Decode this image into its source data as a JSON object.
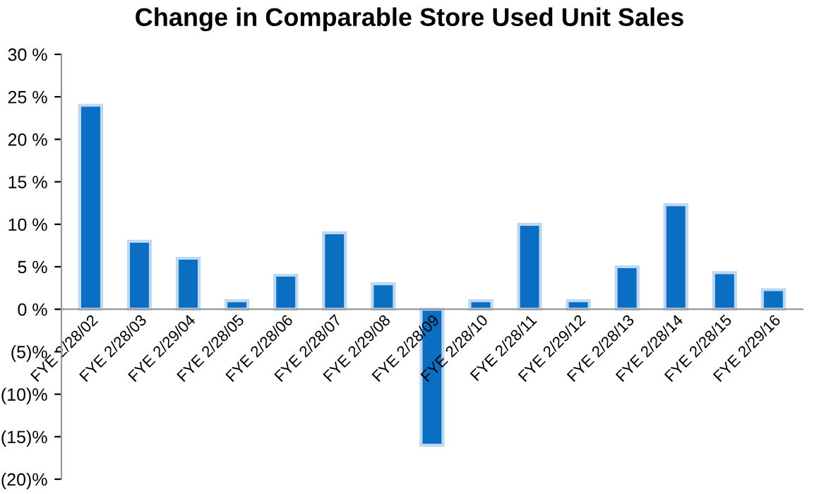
{
  "chart_data": {
    "type": "bar",
    "title": "Change in Comparable Store Used Unit Sales",
    "categories": [
      "FYE 2/28/02",
      "FYE 2/28/03",
      "FYE 2/29/04",
      "FYE 2/28/05",
      "FYE 2/28/06",
      "FYE 2/28/07",
      "FYE 2/29/08",
      "FYE 2/28/09",
      "FYE 2/28/10",
      "FYE 2/28/11",
      "FYE 2/29/12",
      "FYE 2/28/13",
      "FYE 2/28/14",
      "FYE 2/28/15",
      "FYE 2/29/16"
    ],
    "values": [
      24,
      8,
      6,
      1,
      4,
      9,
      3,
      -16,
      1,
      10,
      1,
      5,
      12.3,
      4.3,
      2.3
    ],
    "color": "#0a6fc2",
    "ylim": [
      -20,
      30
    ],
    "yticks": [
      {
        "value": -20,
        "label": "(20)%"
      },
      {
        "value": -15,
        "label": "(15)%"
      },
      {
        "value": -10,
        "label": "(10)%"
      },
      {
        "value": -5,
        "label": "(5)%"
      },
      {
        "value": 0,
        "label": "0 %"
      },
      {
        "value": 5,
        "label": "5 %"
      },
      {
        "value": 10,
        "label": "10 %"
      },
      {
        "value": 15,
        "label": "15 %"
      },
      {
        "value": 20,
        "label": "20 %"
      },
      {
        "value": 25,
        "label": "25 %"
      },
      {
        "value": 30,
        "label": "30 %"
      }
    ],
    "grid": false
  }
}
